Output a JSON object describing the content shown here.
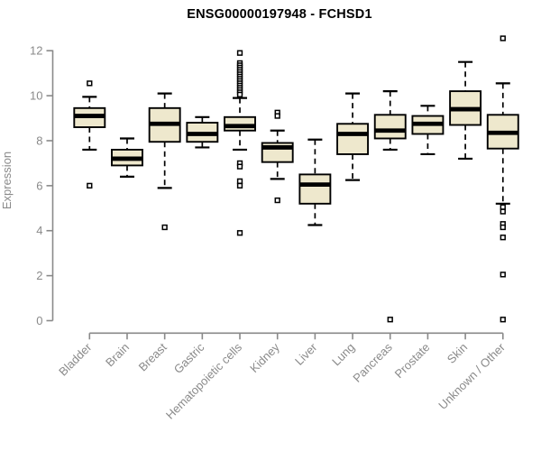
{
  "chart_data": {
    "type": "boxplot",
    "title": "ENSG00000197948 - FCHSD1",
    "ylabel": "Expression",
    "xlabel": "",
    "ylim": [
      0,
      12
    ],
    "yticks": [
      0,
      2,
      4,
      6,
      8,
      10,
      12
    ],
    "grid": false,
    "legend": "none",
    "categories": [
      "Bladder",
      "Brain",
      "Breast",
      "Gastric",
      "Hematopoietic cells",
      "Kidney",
      "Liver",
      "Lung",
      "Pancreas",
      "Prostate",
      "Skin",
      "Unknown / Other"
    ],
    "boxes": [
      {
        "category": "Bladder",
        "whisker_low": 7.6,
        "q1": 8.6,
        "median": 9.1,
        "q3": 9.45,
        "whisker_high": 9.95,
        "outliers": [
          10.55,
          6.0
        ]
      },
      {
        "category": "Brain",
        "whisker_low": 6.4,
        "q1": 6.9,
        "median": 7.2,
        "q3": 7.6,
        "whisker_high": 8.1,
        "outliers": []
      },
      {
        "category": "Breast",
        "whisker_low": 5.9,
        "q1": 7.95,
        "median": 8.75,
        "q3": 9.45,
        "whisker_high": 10.1,
        "outliers": [
          4.15
        ]
      },
      {
        "category": "Gastric",
        "whisker_low": 7.7,
        "q1": 7.95,
        "median": 8.3,
        "q3": 8.8,
        "whisker_high": 9.05,
        "outliers": []
      },
      {
        "category": "Hematopoietic cells",
        "whisker_low": 7.6,
        "q1": 8.45,
        "median": 8.65,
        "q3": 9.05,
        "whisker_high": 9.9,
        "outliers": [
          11.9,
          11.45,
          11.35,
          11.25,
          11.15,
          11.05,
          10.95,
          10.85,
          10.75,
          10.65,
          10.55,
          10.45,
          10.35,
          10.25,
          10.15,
          10.05,
          7.0,
          6.85,
          6.2,
          6.0,
          3.9
        ]
      },
      {
        "category": "Kidney",
        "whisker_low": 6.3,
        "q1": 7.05,
        "median": 7.7,
        "q3": 7.9,
        "whisker_high": 8.45,
        "outliers": [
          9.25,
          9.1,
          5.35
        ]
      },
      {
        "category": "Liver",
        "whisker_low": 4.25,
        "q1": 5.2,
        "median": 6.05,
        "q3": 6.5,
        "whisker_high": 8.05,
        "outliers": []
      },
      {
        "category": "Lung",
        "whisker_low": 6.25,
        "q1": 7.4,
        "median": 8.3,
        "q3": 8.75,
        "whisker_high": 10.1,
        "outliers": []
      },
      {
        "category": "Pancreas",
        "whisker_low": 7.6,
        "q1": 8.1,
        "median": 8.45,
        "q3": 9.15,
        "whisker_high": 10.2,
        "outliers": [
          0.05
        ]
      },
      {
        "category": "Prostate",
        "whisker_low": 7.4,
        "q1": 8.3,
        "median": 8.75,
        "q3": 9.1,
        "whisker_high": 9.55,
        "outliers": []
      },
      {
        "category": "Skin",
        "whisker_low": 7.2,
        "q1": 8.7,
        "median": 9.4,
        "q3": 10.2,
        "whisker_high": 11.5,
        "outliers": []
      },
      {
        "category": "Unknown / Other",
        "whisker_low": 5.2,
        "q1": 7.65,
        "median": 8.35,
        "q3": 9.15,
        "whisker_high": 10.55,
        "outliers": [
          12.55,
          5.05,
          4.85,
          4.3,
          4.15,
          3.7,
          2.05,
          0.05
        ]
      }
    ],
    "colors": {
      "box_fill": "#EEE8CD",
      "box_stroke": "#000000",
      "median": "#000000",
      "whisker": "#000000",
      "outlier_stroke": "#000000",
      "outlier_fill": "#FFFFFF",
      "axis": "#898989",
      "tick_label": "#8a8a8a",
      "title": "#000000",
      "background": "#FFFFFF"
    }
  }
}
